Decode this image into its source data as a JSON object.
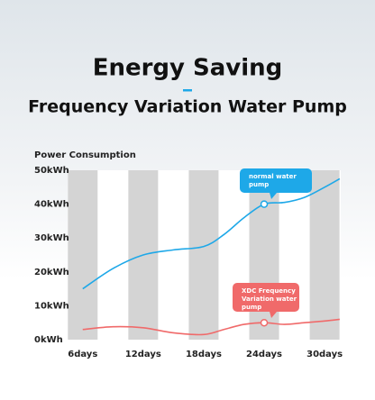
{
  "chart_data": {
    "type": "line",
    "title": "Energy Saving",
    "subtitle": "Frequency Variation Water Pump",
    "y_label": "Power Consumption",
    "xlim": [
      4.5,
      31.6
    ],
    "xticks": [
      {
        "value": 6,
        "label": "6days"
      },
      {
        "value": 12,
        "label": "12days"
      },
      {
        "value": 18,
        "label": "18days"
      },
      {
        "value": 24,
        "label": "24days"
      },
      {
        "value": 30,
        "label": "30days"
      }
    ],
    "ylim": [
      0,
      50
    ],
    "yticks": [
      {
        "value": 0,
        "label": "0kWh"
      },
      {
        "value": 10,
        "label": "10kWh"
      },
      {
        "value": 20,
        "label": "20kWh"
      },
      {
        "value": 30,
        "label": "30kWh"
      },
      {
        "value": 40,
        "label": "40kWh"
      },
      {
        "value": 50,
        "label": "50kWh"
      }
    ],
    "x": [
      6,
      9,
      12,
      15,
      18,
      20,
      22,
      24,
      26,
      28,
      30,
      31.5
    ],
    "series": [
      {
        "name": "normal water pump",
        "color": "#1ea8e8",
        "values": [
          15,
          21,
          25,
          26.5,
          27.5,
          31,
          36,
          40,
          40.5,
          42,
          45,
          47.5
        ]
      },
      {
        "name": "XDC Frequency Variation water pump",
        "color": "#f06a6a",
        "values": [
          3,
          3.8,
          3.5,
          2,
          1.5,
          3,
          4.5,
          5,
          4.5,
          5,
          5.5,
          6
        ]
      }
    ],
    "stripe_color": "#d4d4d4"
  }
}
